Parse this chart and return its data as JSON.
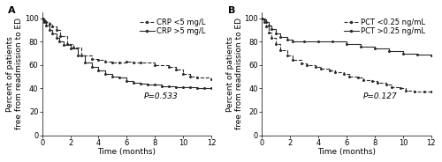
{
  "panel_A": {
    "label": "A",
    "xlabel": "Time (months)",
    "ylabel": "Percent of patients\nfree from readmission to ED",
    "xlim": [
      0,
      12
    ],
    "ylim": [
      0,
      105
    ],
    "yticks": [
      0,
      20,
      40,
      60,
      80,
      100
    ],
    "xticks": [
      0,
      2,
      4,
      6,
      8,
      10,
      12
    ],
    "pvalue": "P=0.533",
    "pvalue_x": 0.6,
    "pvalue_y": 0.28,
    "legend": [
      "CRP <5 mg/L",
      "CRP >5 mg/L"
    ],
    "curve_low": {
      "x": [
        0,
        0.15,
        0.3,
        0.5,
        0.7,
        1.0,
        1.3,
        1.8,
        2.2,
        2.8,
        3.5,
        4.0,
        4.5,
        5.0,
        5.5,
        6.0,
        6.5,
        7.0,
        8.0,
        9.0,
        9.5,
        10.0,
        10.5,
        11.0,
        12.0
      ],
      "y": [
        100,
        98,
        97,
        95,
        93,
        90,
        85,
        78,
        75,
        68,
        65,
        64,
        63,
        62,
        62,
        63,
        62,
        62,
        60,
        58,
        56,
        52,
        50,
        49,
        48
      ]
    },
    "curve_high": {
      "x": [
        0,
        0.15,
        0.3,
        0.5,
        0.7,
        1.0,
        1.2,
        1.5,
        2.0,
        2.5,
        3.0,
        3.5,
        4.0,
        4.5,
        5.0,
        5.5,
        6.0,
        6.5,
        7.0,
        7.5,
        8.0,
        8.5,
        9.0,
        9.5,
        10.0,
        10.5,
        11.0,
        11.5,
        12.0
      ],
      "y": [
        100,
        97,
        94,
        90,
        87,
        83,
        80,
        77,
        74,
        68,
        62,
        58,
        55,
        52,
        50,
        49,
        46,
        45,
        44,
        43,
        43,
        42,
        42,
        41,
        41,
        41,
        40,
        40,
        40
      ]
    }
  },
  "panel_B": {
    "label": "B",
    "xlabel": "Time (months)",
    "ylabel": "Percent of patients\nfree from readmission to ED",
    "xlim": [
      0,
      12
    ],
    "ylim": [
      0,
      105
    ],
    "yticks": [
      0,
      20,
      40,
      60,
      80,
      100
    ],
    "xticks": [
      0,
      2,
      4,
      6,
      8,
      10,
      12
    ],
    "pvalue": "P=0.127",
    "pvalue_x": 0.6,
    "pvalue_y": 0.28,
    "legend": [
      "PCT <0.25 ng/mL",
      "PCT >0.25 ng/mL"
    ],
    "curve_low": {
      "x": [
        0,
        0.15,
        0.3,
        0.5,
        0.7,
        1.0,
        1.3,
        1.8,
        2.2,
        2.8,
        3.2,
        3.8,
        4.2,
        4.8,
        5.2,
        5.8,
        6.2,
        6.8,
        7.2,
        7.8,
        8.2,
        8.8,
        9.2,
        9.8,
        10.2,
        10.8,
        11.5,
        12.0
      ],
      "y": [
        100,
        97,
        93,
        88,
        83,
        78,
        73,
        68,
        64,
        61,
        60,
        58,
        57,
        55,
        54,
        52,
        50,
        49,
        47,
        46,
        45,
        43,
        41,
        40,
        38,
        37,
        37,
        37
      ]
    },
    "curve_high": {
      "x": [
        0,
        0.15,
        0.3,
        0.5,
        0.7,
        1.0,
        1.3,
        1.8,
        2.2,
        3.0,
        4.0,
        5.0,
        6.0,
        7.0,
        8.0,
        9.0,
        10.0,
        11.0,
        12.0
      ],
      "y": [
        100,
        99,
        97,
        94,
        91,
        87,
        84,
        82,
        80,
        80,
        80,
        80,
        78,
        76,
        74,
        72,
        70,
        69,
        68
      ]
    }
  },
  "line_color": "#2b2b2b",
  "bg_color": "#ffffff",
  "fontsize_label": 6.5,
  "fontsize_tick": 6,
  "fontsize_legend": 6,
  "fontsize_pvalue": 6.5,
  "fontsize_panel_label": 8
}
